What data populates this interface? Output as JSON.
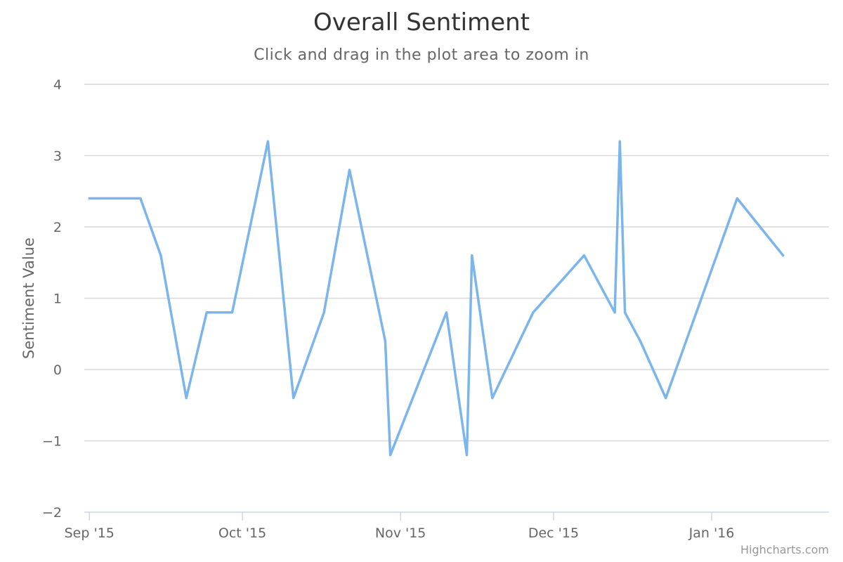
{
  "chart_data": {
    "type": "line",
    "title": "Overall Sentiment",
    "subtitle": "Click and drag in the plot area to zoom in",
    "ylabel": "Sentiment Value",
    "xlabel": "",
    "ylim": [
      -2,
      4
    ],
    "yticks": [
      -2,
      -1,
      0,
      1,
      2,
      3,
      4
    ],
    "xlim": [
      "2015-08-31",
      "2016-01-24"
    ],
    "xticks": [
      {
        "date": "2015-09-01",
        "label": "Sep '15"
      },
      {
        "date": "2015-10-01",
        "label": "Oct '15"
      },
      {
        "date": "2015-11-01",
        "label": "Nov '15"
      },
      {
        "date": "2015-12-01",
        "label": "Dec '15"
      },
      {
        "date": "2016-01-01",
        "label": "Jan '16"
      }
    ],
    "grid": true,
    "legend": "none",
    "series": [
      {
        "color": "#7cb5ec",
        "points": [
          {
            "x": "2015-09-01",
            "y": 2.4
          },
          {
            "x": "2015-09-11",
            "y": 2.4
          },
          {
            "x": "2015-09-15",
            "y": 1.6
          },
          {
            "x": "2015-09-20",
            "y": -0.4
          },
          {
            "x": "2015-09-24",
            "y": 0.8
          },
          {
            "x": "2015-09-29",
            "y": 0.8
          },
          {
            "x": "2015-10-06",
            "y": 3.2
          },
          {
            "x": "2015-10-11",
            "y": -0.4
          },
          {
            "x": "2015-10-17",
            "y": 0.8
          },
          {
            "x": "2015-10-22",
            "y": 2.8
          },
          {
            "x": "2015-10-29",
            "y": 0.4
          },
          {
            "x": "2015-10-30",
            "y": -1.2
          },
          {
            "x": "2015-11-10",
            "y": 0.8
          },
          {
            "x": "2015-11-14",
            "y": -1.2
          },
          {
            "x": "2015-11-15",
            "y": 1.6
          },
          {
            "x": "2015-11-19",
            "y": -0.4
          },
          {
            "x": "2015-11-27",
            "y": 0.8
          },
          {
            "x": "2015-12-07",
            "y": 1.6
          },
          {
            "x": "2015-12-13",
            "y": 0.8
          },
          {
            "x": "2015-12-14",
            "y": 3.2
          },
          {
            "x": "2015-12-15",
            "y": 0.8
          },
          {
            "x": "2015-12-18",
            "y": 0.4
          },
          {
            "x": "2015-12-23",
            "y": -0.4
          },
          {
            "x": "2016-01-06",
            "y": 2.4
          },
          {
            "x": "2016-01-15",
            "y": 1.6
          }
        ]
      }
    ]
  },
  "credits": "Highcharts.com"
}
